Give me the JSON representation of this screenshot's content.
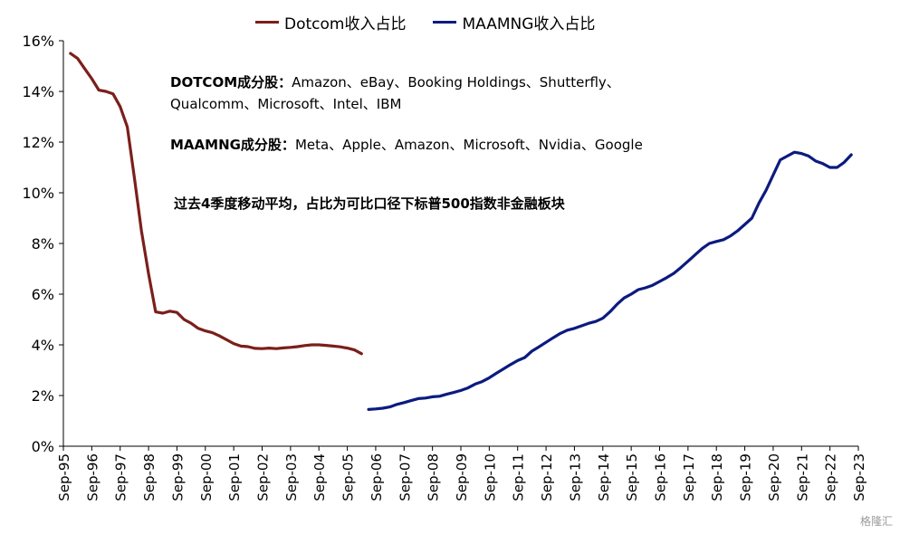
{
  "legend": {
    "dotcom": "Dotcom收入占比",
    "maamng": "MAAMNG收入占比"
  },
  "notes": {
    "dotcom_label": "DOTCOM成分股：",
    "dotcom_text": "Amazon、eBay、Booking Holdings、Shutterfly、",
    "dotcom_text2": "Qualcomm、Microsoft、Intel、IBM",
    "maamng_label": "MAAMNG成分股：",
    "maamng_text": "Meta、Apple、Amazon、Microsoft、Nvidia、Google",
    "method": "过去4季度移动平均，占比为可比口径下标普500指数非金融板块"
  },
  "watermark": "格隆汇",
  "colors": {
    "dotcom": "#7B1F1A",
    "maamng": "#0B1B7F",
    "axis": "#000000"
  },
  "chart_data": {
    "type": "line",
    "x_ticks": [
      "Sep-95",
      "Sep-96",
      "Sep-97",
      "Sep-98",
      "Sep-99",
      "Sep-00",
      "Sep-01",
      "Sep-02",
      "Sep-03",
      "Sep-04",
      "Sep-05",
      "Sep-06",
      "Sep-07",
      "Sep-08",
      "Sep-09",
      "Sep-10",
      "Sep-11",
      "Sep-12",
      "Sep-13",
      "Sep-14",
      "Sep-15",
      "Sep-16",
      "Sep-17",
      "Sep-18",
      "Sep-19",
      "Sep-20",
      "Sep-21",
      "Sep-22",
      "Sep-23"
    ],
    "y_ticks": [
      "0%",
      "2%",
      "4%",
      "6%",
      "8%",
      "10%",
      "12%",
      "14%",
      "16%"
    ],
    "ylim": [
      0,
      16
    ],
    "grid": false,
    "legend_position": "top",
    "series": [
      {
        "name": "Dotcom收入占比",
        "color": "#7B1F1A",
        "points": [
          [
            0.25,
            15.5
          ],
          [
            0.5,
            15.3
          ],
          [
            0.75,
            14.9
          ],
          [
            1.0,
            14.5
          ],
          [
            1.25,
            14.05
          ],
          [
            1.5,
            14.0
          ],
          [
            1.75,
            13.9
          ],
          [
            2.0,
            13.4
          ],
          [
            2.25,
            12.6
          ],
          [
            2.5,
            10.6
          ],
          [
            2.75,
            8.5
          ],
          [
            3.0,
            6.8
          ],
          [
            3.25,
            5.3
          ],
          [
            3.5,
            5.25
          ],
          [
            3.75,
            5.33
          ],
          [
            4.0,
            5.28
          ],
          [
            4.25,
            5.0
          ],
          [
            4.5,
            4.85
          ],
          [
            4.75,
            4.65
          ],
          [
            5.0,
            4.55
          ],
          [
            5.25,
            4.48
          ],
          [
            5.5,
            4.35
          ],
          [
            5.75,
            4.2
          ],
          [
            6.0,
            4.05
          ],
          [
            6.25,
            3.95
          ],
          [
            6.5,
            3.93
          ],
          [
            6.75,
            3.86
          ],
          [
            7.0,
            3.85
          ],
          [
            7.25,
            3.87
          ],
          [
            7.5,
            3.85
          ],
          [
            7.75,
            3.88
          ],
          [
            8.0,
            3.9
          ],
          [
            8.25,
            3.93
          ],
          [
            8.5,
            3.97
          ],
          [
            8.75,
            4.0
          ],
          [
            9.0,
            4.0
          ],
          [
            9.25,
            3.98
          ],
          [
            9.5,
            3.95
          ],
          [
            9.75,
            3.92
          ],
          [
            10.0,
            3.87
          ],
          [
            10.25,
            3.8
          ],
          [
            10.5,
            3.65
          ]
        ]
      },
      {
        "name": "MAAMNG收入占比",
        "color": "#0B1B7F",
        "points": [
          [
            10.75,
            1.45
          ],
          [
            11.0,
            1.47
          ],
          [
            11.25,
            1.5
          ],
          [
            11.5,
            1.55
          ],
          [
            11.75,
            1.65
          ],
          [
            12.0,
            1.72
          ],
          [
            12.25,
            1.8
          ],
          [
            12.5,
            1.88
          ],
          [
            12.75,
            1.9
          ],
          [
            13.0,
            1.95
          ],
          [
            13.25,
            1.97
          ],
          [
            13.5,
            2.05
          ],
          [
            13.75,
            2.12
          ],
          [
            14.0,
            2.2
          ],
          [
            14.25,
            2.3
          ],
          [
            14.5,
            2.45
          ],
          [
            14.75,
            2.55
          ],
          [
            15.0,
            2.7
          ],
          [
            15.25,
            2.88
          ],
          [
            15.5,
            3.05
          ],
          [
            15.75,
            3.22
          ],
          [
            16.0,
            3.38
          ],
          [
            16.25,
            3.5
          ],
          [
            16.5,
            3.75
          ],
          [
            16.75,
            3.92
          ],
          [
            17.0,
            4.1
          ],
          [
            17.25,
            4.28
          ],
          [
            17.5,
            4.45
          ],
          [
            17.75,
            4.58
          ],
          [
            18.0,
            4.65
          ],
          [
            18.25,
            4.75
          ],
          [
            18.5,
            4.85
          ],
          [
            18.75,
            4.92
          ],
          [
            19.0,
            5.05
          ],
          [
            19.25,
            5.3
          ],
          [
            19.5,
            5.6
          ],
          [
            19.75,
            5.85
          ],
          [
            20.0,
            6.0
          ],
          [
            20.25,
            6.18
          ],
          [
            20.5,
            6.25
          ],
          [
            20.75,
            6.35
          ],
          [
            21.0,
            6.5
          ],
          [
            21.25,
            6.65
          ],
          [
            21.5,
            6.82
          ],
          [
            21.75,
            7.05
          ],
          [
            22.0,
            7.3
          ],
          [
            22.25,
            7.55
          ],
          [
            22.5,
            7.8
          ],
          [
            22.75,
            8.0
          ],
          [
            23.0,
            8.08
          ],
          [
            23.25,
            8.15
          ],
          [
            23.5,
            8.3
          ],
          [
            23.75,
            8.5
          ],
          [
            24.0,
            8.75
          ],
          [
            24.25,
            9.0
          ],
          [
            24.5,
            9.6
          ],
          [
            24.75,
            10.1
          ],
          [
            25.0,
            10.7
          ],
          [
            25.25,
            11.3
          ],
          [
            25.5,
            11.45
          ],
          [
            25.75,
            11.6
          ],
          [
            26.0,
            11.55
          ],
          [
            26.25,
            11.45
          ],
          [
            26.5,
            11.25
          ],
          [
            26.75,
            11.15
          ],
          [
            27.0,
            11.0
          ],
          [
            27.25,
            11.0
          ],
          [
            27.5,
            11.2
          ],
          [
            27.75,
            11.5
          ]
        ]
      }
    ]
  }
}
